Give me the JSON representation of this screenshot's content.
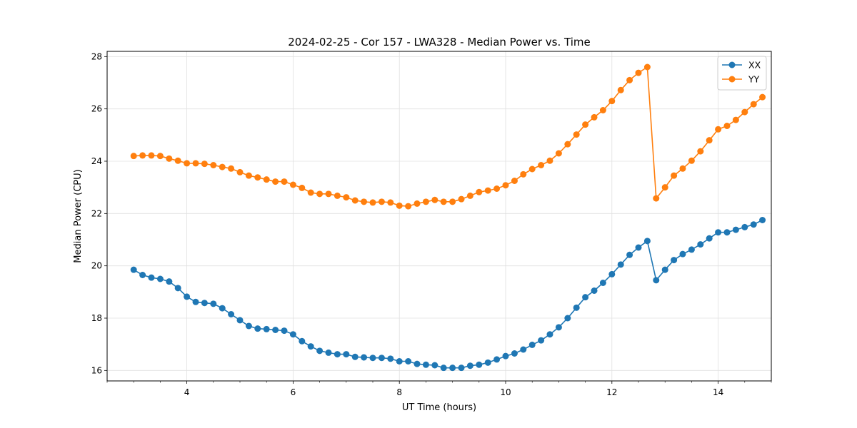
{
  "chart_data": {
    "type": "line",
    "title": "2024-02-25 - Cor 157 - LWA328 - Median Power vs. Time",
    "xlabel": "UT Time (hours)",
    "ylabel": "Median Power (CPU)",
    "xlim": [
      2.5,
      15.0
    ],
    "ylim": [
      15.6,
      28.2
    ],
    "xticks": [
      4,
      6,
      8,
      10,
      12,
      14
    ],
    "yticks": [
      16,
      18,
      20,
      22,
      24,
      26,
      28
    ],
    "grid": true,
    "legend_position": "top-right",
    "x": [
      3.0,
      3.167,
      3.333,
      3.5,
      3.667,
      3.833,
      4.0,
      4.167,
      4.333,
      4.5,
      4.667,
      4.833,
      5.0,
      5.167,
      5.333,
      5.5,
      5.667,
      5.833,
      6.0,
      6.167,
      6.333,
      6.5,
      6.667,
      6.833,
      7.0,
      7.167,
      7.333,
      7.5,
      7.667,
      7.833,
      8.0,
      8.167,
      8.333,
      8.5,
      8.667,
      8.833,
      9.0,
      9.167,
      9.333,
      9.5,
      9.667,
      9.833,
      10.0,
      10.167,
      10.333,
      10.5,
      10.667,
      10.833,
      11.0,
      11.167,
      11.333,
      11.5,
      11.667,
      11.833,
      12.0,
      12.167,
      12.333,
      12.5,
      12.667,
      12.833,
      13.0,
      13.167,
      13.333,
      13.5,
      13.667,
      13.833,
      14.0,
      14.167,
      14.333,
      14.5,
      14.667,
      14.833
    ],
    "series": [
      {
        "name": "XX",
        "color": "#1f77b4",
        "values": [
          19.85,
          19.65,
          19.55,
          19.5,
          19.4,
          19.15,
          18.82,
          18.62,
          18.58,
          18.55,
          18.38,
          18.15,
          17.92,
          17.7,
          17.6,
          17.58,
          17.55,
          17.52,
          17.38,
          17.12,
          16.92,
          16.75,
          16.68,
          16.62,
          16.62,
          16.52,
          16.5,
          16.48,
          16.48,
          16.45,
          16.35,
          16.35,
          16.25,
          16.22,
          16.2,
          16.1,
          16.1,
          16.1,
          16.18,
          16.22,
          16.3,
          16.42,
          16.55,
          16.65,
          16.8,
          16.98,
          17.15,
          17.38,
          17.65,
          18.0,
          18.4,
          18.8,
          19.05,
          19.35,
          19.68,
          20.05,
          20.42,
          20.7,
          20.95,
          19.45,
          19.85,
          20.22,
          20.45,
          20.62,
          20.82,
          21.05,
          21.28,
          21.28,
          21.38,
          21.48,
          21.58,
          21.75
        ]
      },
      {
        "name": "YY",
        "color": "#ff7f0e",
        "values": [
          24.2,
          24.22,
          24.22,
          24.2,
          24.1,
          24.02,
          23.92,
          23.92,
          23.9,
          23.85,
          23.78,
          23.72,
          23.58,
          23.45,
          23.38,
          23.3,
          23.22,
          23.22,
          23.1,
          22.98,
          22.8,
          22.75,
          22.75,
          22.68,
          22.62,
          22.5,
          22.45,
          22.42,
          22.45,
          22.42,
          22.3,
          22.28,
          22.38,
          22.45,
          22.52,
          22.45,
          22.45,
          22.55,
          22.68,
          22.82,
          22.88,
          22.95,
          23.08,
          23.25,
          23.5,
          23.7,
          23.85,
          24.02,
          24.3,
          24.65,
          25.02,
          25.4,
          25.68,
          25.95,
          26.3,
          26.72,
          27.1,
          27.38,
          27.6,
          22.58,
          23.0,
          23.45,
          23.72,
          24.02,
          24.38,
          24.8,
          25.22,
          25.35,
          25.58,
          25.88,
          26.18,
          26.45
        ]
      }
    ]
  }
}
